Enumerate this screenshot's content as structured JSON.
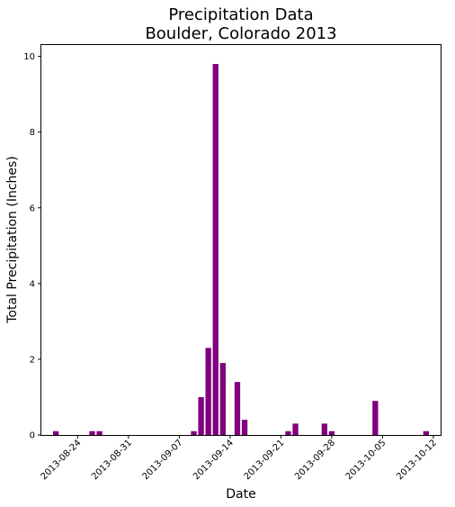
{
  "chart_data": {
    "type": "bar",
    "title": [
      "Precipitation Data",
      "Boulder, Colorado 2013"
    ],
    "xlabel": "Date",
    "ylabel": "Total Precipitation (Inches)",
    "bar_color": "#800080",
    "xlim": [
      "2013-08-19",
      "2013-10-13"
    ],
    "ylim": [
      0,
      10.3
    ],
    "x_ticks": [
      "2013-08-24",
      "2013-08-31",
      "2013-09-07",
      "2013-09-14",
      "2013-09-21",
      "2013-09-28",
      "2013-10-05",
      "2013-10-12"
    ],
    "y_ticks": [
      0,
      2,
      4,
      6,
      8,
      10
    ],
    "grid": false,
    "points": [
      {
        "date": "2013-08-21",
        "value": 0.1
      },
      {
        "date": "2013-08-26",
        "value": 0.1
      },
      {
        "date": "2013-08-27",
        "value": 0.1
      },
      {
        "date": "2013-09-09",
        "value": 0.1
      },
      {
        "date": "2013-09-10",
        "value": 1.0
      },
      {
        "date": "2013-09-11",
        "value": 2.3
      },
      {
        "date": "2013-09-12",
        "value": 9.8
      },
      {
        "date": "2013-09-13",
        "value": 1.9
      },
      {
        "date": "2013-09-15",
        "value": 1.4
      },
      {
        "date": "2013-09-16",
        "value": 0.4
      },
      {
        "date": "2013-09-22",
        "value": 0.1
      },
      {
        "date": "2013-09-23",
        "value": 0.3
      },
      {
        "date": "2013-09-27",
        "value": 0.3
      },
      {
        "date": "2013-09-28",
        "value": 0.1
      },
      {
        "date": "2013-10-04",
        "value": 0.9
      },
      {
        "date": "2013-10-11",
        "value": 0.1
      }
    ]
  }
}
